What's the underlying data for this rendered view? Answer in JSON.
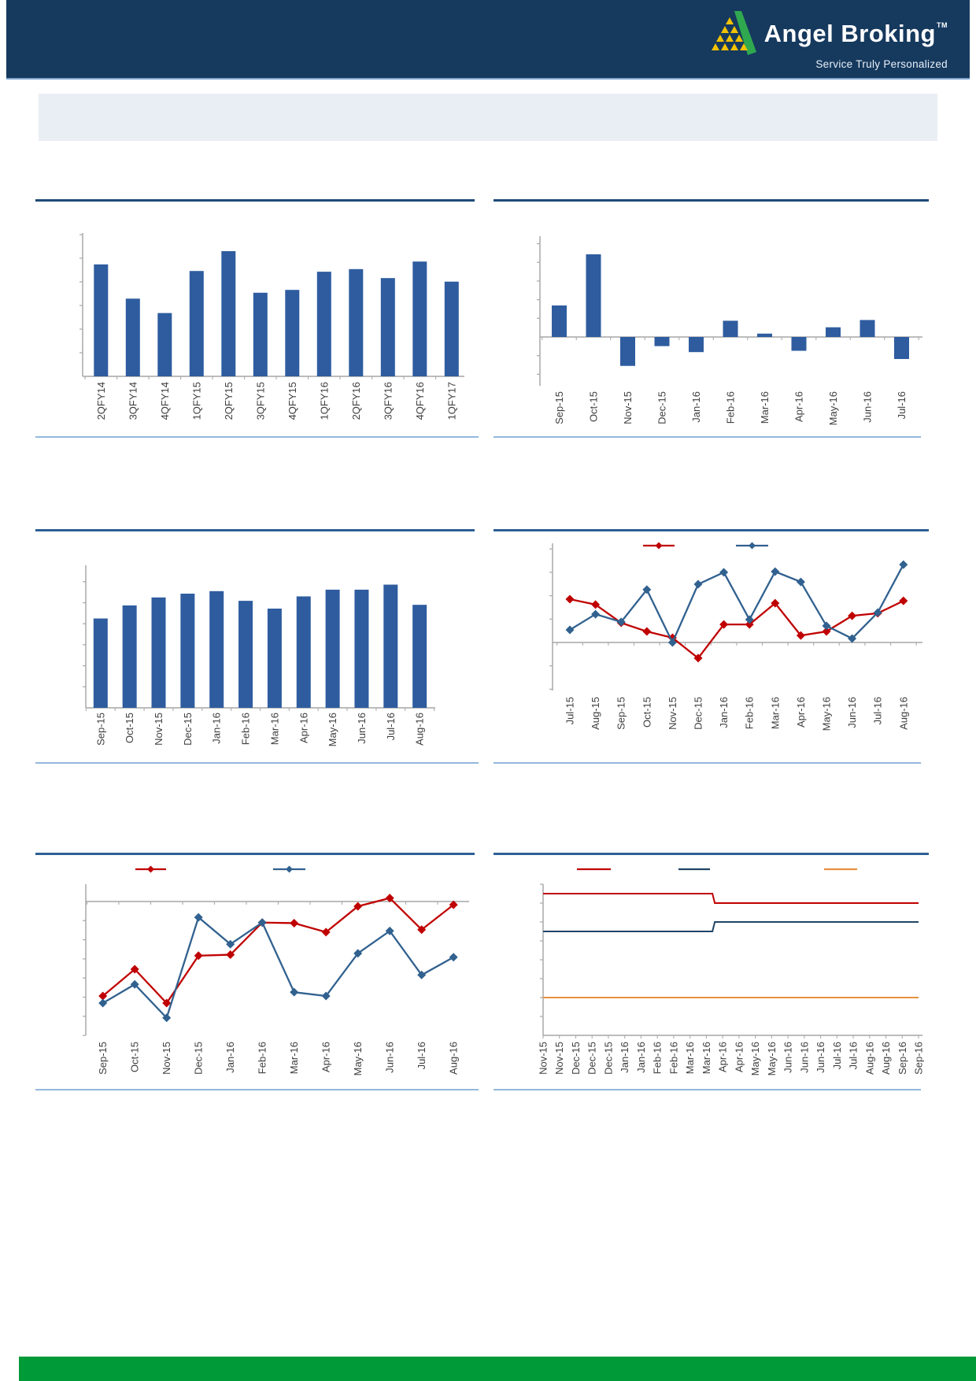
{
  "header": {
    "brand_name": "Angel Broking",
    "trademark_symbol": "TM",
    "tagline": "Service Truly Personalized",
    "background_color": "#16395E",
    "logo": {
      "triangle_green": "#2FA84F",
      "pyramid_yellow": "#F2C200"
    }
  },
  "summary_box": {
    "text": "",
    "background_color": "#E9EEF4"
  },
  "footer": {
    "bar_color": "#019A39"
  },
  "palette": {
    "bar_blue": "#2E5C9F",
    "line_red": "#C00000",
    "line_blue": "#31618F",
    "step_blue": "#1F4564",
    "line_orange": "#E89040",
    "axis_gray": "#ADADAD",
    "separator_dark": "#2D5F95",
    "separator_light": "#93B8DC"
  },
  "chart_data": [
    {
      "id": "c1",
      "type": "bar",
      "title": "",
      "categories": [
        "2QFY14",
        "3QFY14",
        "4QFY14",
        "1QFY15",
        "2QFY15",
        "3QFY15",
        "4QFY15",
        "1QFY16",
        "2QFY16",
        "3QFY16",
        "4QFY16",
        "1QFY17"
      ],
      "values": [
        4.74,
        3.29,
        2.68,
        4.46,
        5.3,
        3.54,
        3.66,
        4.43,
        4.54,
        4.16,
        4.86,
        4.01
      ],
      "bar_color": "#2E5C9F",
      "ylim": [
        0,
        6.1
      ],
      "y_tick_labels_visible": false,
      "grid": false,
      "x_label_rotation": -90
    },
    {
      "id": "c2",
      "type": "bar",
      "title": "",
      "categories": [
        "Sep-15",
        "Oct-15",
        "Nov-15",
        "Dec-15",
        "Jan-16",
        "Feb-16",
        "Mar-16",
        "Apr-16",
        "May-16",
        "Jun-16",
        "Jul-16"
      ],
      "values": [
        1.69,
        4.43,
        -1.55,
        -0.49,
        -0.81,
        0.87,
        0.18,
        -0.74,
        0.52,
        0.91,
        -1.18
      ],
      "bar_color": "#2E5C9F",
      "ylim": [
        -2.6,
        5.4
      ],
      "y_tick_labels_visible": false,
      "grid": false,
      "x_label_rotation": -90
    },
    {
      "id": "c3",
      "type": "bar",
      "title": "",
      "categories": [
        "Sep-15",
        "Oct-15",
        "Nov-15",
        "Dec-15",
        "Jan-16",
        "Feb-16",
        "Mar-16",
        "Apr-16",
        "May-16",
        "Jun-16",
        "Jul-16",
        "Aug-16"
      ],
      "values": [
        4.25,
        4.87,
        5.25,
        5.43,
        5.55,
        5.09,
        4.72,
        5.3,
        5.62,
        5.62,
        5.86,
        4.9
      ],
      "bar_color": "#2E5C9F",
      "ylim": [
        0,
        6.8
      ],
      "y_tick_labels_visible": false,
      "grid": false,
      "x_label_rotation": -90
    },
    {
      "id": "c4",
      "type": "line",
      "title": "",
      "categories": [
        "Jul-15",
        "Aug-15",
        "Sep-15",
        "Oct-15",
        "Nov-15",
        "Dec-15",
        "Jan-16",
        "Feb-16",
        "Mar-16",
        "Apr-16",
        "May-16",
        "Jun-16",
        "Jul-16",
        "Aug-16"
      ],
      "series": [
        {
          "name": "series-red",
          "color": "#C00000",
          "marker": "diamond",
          "values": [
            1.85,
            1.62,
            0.84,
            0.47,
            0.2,
            -0.67,
            0.77,
            0.77,
            1.68,
            0.3,
            0.47,
            1.14,
            1.25,
            1.78
          ]
        },
        {
          "name": "series-blue",
          "color": "#31618F",
          "marker": "diamond",
          "values": [
            0.54,
            1.21,
            0.88,
            2.26,
            0.0,
            2.49,
            3.0,
            0.98,
            3.03,
            2.59,
            0.71,
            0.17,
            1.28,
            3.33
          ]
        }
      ],
      "legend": {
        "position": "top-center",
        "entries": [
          {
            "label": "",
            "color": "#C00000"
          },
          {
            "label": "",
            "color": "#31618F"
          }
        ]
      },
      "ylim": [
        -2.05,
        4.25
      ],
      "y_tick_labels_visible": false,
      "grid": false,
      "x_label_rotation": -90
    },
    {
      "id": "c5",
      "type": "line",
      "title": "",
      "categories": [
        "Sep-15",
        "Oct-15",
        "Nov-15",
        "Dec-15",
        "Jan-16",
        "Feb-16",
        "Mar-16",
        "Apr-16",
        "May-16",
        "Jun-16",
        "Jul-16",
        "Aug-16"
      ],
      "series": [
        {
          "name": "series-red",
          "color": "#C00000",
          "marker": "diamond",
          "values": [
            -4.94,
            -3.54,
            -5.31,
            -2.83,
            -2.78,
            -1.1,
            -1.13,
            -1.6,
            -0.25,
            0.18,
            -1.47,
            -0.17
          ]
        },
        {
          "name": "series-blue",
          "color": "#31618F",
          "marker": "diamond",
          "values": [
            -5.31,
            -4.33,
            -6.08,
            -0.83,
            -2.23,
            -1.1,
            -4.74,
            -4.94,
            -2.71,
            -1.54,
            -3.84,
            -2.91
          ]
        }
      ],
      "legend": {
        "position": "top-left",
        "entries": [
          {
            "label": "",
            "color": "#C00000"
          },
          {
            "label": "",
            "color": "#31618F"
          }
        ]
      },
      "ylim": [
        -7.0,
        0.9
      ],
      "y_tick_labels_visible": false,
      "grid": false,
      "x_label_rotation": -90,
      "reference_line_at": 0
    },
    {
      "id": "c6",
      "type": "line-step",
      "title": "",
      "categories": [
        "Nov-15",
        "Nov-15",
        "Dec-15",
        "Dec-15",
        "Dec-15",
        "Jan-16",
        "Jan-16",
        "Feb-16",
        "Feb-16",
        "Mar-16",
        "Mar-16",
        "Apr-16",
        "Apr-16",
        "May-16",
        "May-16",
        "Jun-16",
        "Jun-16",
        "Jun-16",
        "Jul-16",
        "Jul-16",
        "Aug-16",
        "Aug-16",
        "Sep-16",
        "Sep-16"
      ],
      "series": [
        {
          "name": "series-red",
          "color": "#C00000",
          "marker": "none",
          "values": [
            7.5,
            7.5,
            7.5,
            7.5,
            7.5,
            7.5,
            7.5,
            7.5,
            7.5,
            7.5,
            7.5,
            7.0,
            7.0,
            7.0,
            7.0,
            7.0,
            7.0,
            7.0,
            7.0,
            7.0,
            7.0,
            7.0,
            7.0,
            7.0
          ]
        },
        {
          "name": "series-blue",
          "color": "#1F4564",
          "marker": "none",
          "values": [
            5.5,
            5.5,
            5.5,
            5.5,
            5.5,
            5.5,
            5.5,
            5.5,
            5.5,
            5.5,
            5.5,
            6.0,
            6.0,
            6.0,
            6.0,
            6.0,
            6.0,
            6.0,
            6.0,
            6.0,
            6.0,
            6.0,
            6.0,
            6.0
          ]
        },
        {
          "name": "series-orange",
          "color": "#E89040",
          "marker": "none",
          "values": [
            2.0,
            2.0,
            2.0,
            2.0,
            2.0,
            2.0,
            2.0,
            2.0,
            2.0,
            2.0,
            2.0,
            2.0,
            2.0,
            2.0,
            2.0,
            2.0,
            2.0,
            2.0,
            2.0,
            2.0,
            2.0,
            2.0,
            2.0,
            2.0
          ]
        }
      ],
      "legend": {
        "position": "top",
        "entries": [
          {
            "label": "",
            "color": "#C00000"
          },
          {
            "label": "",
            "color": "#1F4564"
          },
          {
            "label": "",
            "color": "#E89040"
          }
        ]
      },
      "ylim": [
        0,
        8
      ],
      "y_tick_labels_visible": false,
      "grid": false,
      "x_label_rotation": -90
    }
  ]
}
